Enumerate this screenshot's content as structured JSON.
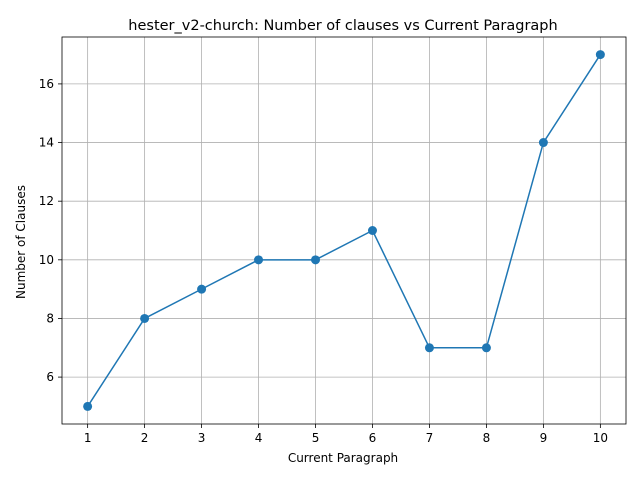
{
  "chart_data": {
    "type": "line",
    "title": "hester_v2-church: Number of clauses vs Current Paragraph",
    "xlabel": "Current Paragraph",
    "ylabel": "Number of Clauses",
    "x": [
      1,
      2,
      3,
      4,
      5,
      6,
      7,
      8,
      9,
      10
    ],
    "series": [
      {
        "values": [
          5,
          8,
          9,
          10,
          10,
          11,
          7,
          7,
          14,
          17
        ],
        "color": "#1f77b4",
        "marker": "circle"
      }
    ],
    "xlim": [
      0.55,
      10.45
    ],
    "ylim": [
      4.4,
      17.6
    ],
    "xticks": [
      1,
      2,
      3,
      4,
      5,
      6,
      7,
      8,
      9,
      10
    ],
    "yticks": [
      6,
      8,
      10,
      12,
      14,
      16
    ],
    "grid": true,
    "grid_color": "#b0b0b0"
  }
}
